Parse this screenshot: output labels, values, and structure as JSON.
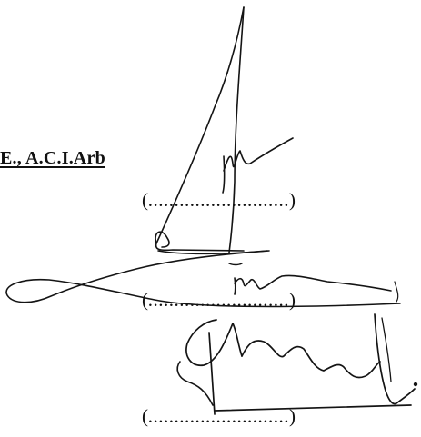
{
  "document": {
    "heading": "E., A.C.I.Arb",
    "lines": [
      {
        "open": "(",
        "dots": "...........................",
        "close": ")"
      },
      {
        "open": "(",
        "dots": "...........................",
        "close": ")"
      },
      {
        "open": "(",
        "dots": "...........................",
        "close": ")"
      }
    ]
  },
  "signatures": [
    {
      "description": "handwritten-signature-top"
    },
    {
      "description": "handwritten-signature-middle"
    },
    {
      "description": "handwritten-signature-bottom"
    }
  ]
}
